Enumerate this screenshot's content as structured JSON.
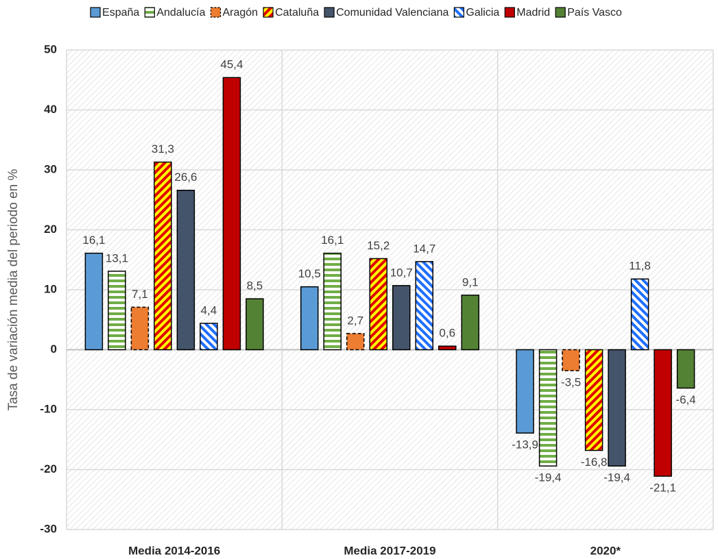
{
  "chart_data": {
    "type": "bar",
    "y_label": "Tasa de variación media del periodo en %",
    "categories": [
      "Media 2014-2016",
      "Media 2017-2019",
      "2020*"
    ],
    "series": [
      {
        "name": "España",
        "color": "#5b9bd5",
        "values": [
          16.1,
          10.5,
          -13.9
        ],
        "value_labels": [
          "16,1",
          "10,5",
          "-13,9"
        ]
      },
      {
        "name": "Andalucía",
        "color": "#70ad47",
        "values": [
          13.1,
          16.1,
          -19.4
        ],
        "value_labels": [
          "13,1",
          "16,1",
          "-19,4"
        ]
      },
      {
        "name": "Aragón",
        "color": "#ed7d31",
        "values": [
          7.1,
          2.7,
          -3.5
        ],
        "value_labels": [
          "7,1",
          "2,7",
          "-3,5"
        ]
      },
      {
        "name": "Cataluña",
        "color": "#ffff00",
        "values": [
          31.3,
          15.2,
          -16.8
        ],
        "value_labels": [
          "31,3",
          "15,2",
          "-16,8"
        ]
      },
      {
        "name": "Comunidad Valenciana",
        "color": "#44546a",
        "values": [
          26.6,
          10.7,
          -19.4
        ],
        "value_labels": [
          "26,6",
          "10,7",
          "-19,4"
        ]
      },
      {
        "name": "Galicia",
        "color": "#1f6fff",
        "values": [
          4.4,
          14.7,
          11.8
        ],
        "value_labels": [
          "4,4",
          "14,7",
          "11,8"
        ]
      },
      {
        "name": "Madrid",
        "color": "#c00000",
        "values": [
          45.4,
          0.6,
          -21.1
        ],
        "value_labels": [
          "45,4",
          "0,6",
          "-21,1"
        ]
      },
      {
        "name": "País Vasco",
        "color": "#548235",
        "values": [
          8.5,
          9.1,
          -6.4
        ],
        "value_labels": [
          "8,5",
          "9,1",
          "-6,4"
        ]
      }
    ],
    "ylim": [
      -30,
      50
    ],
    "yticks": [
      -30,
      -20,
      -10,
      0,
      10,
      20,
      30,
      40,
      50
    ],
    "grid": true,
    "legend": "top"
  }
}
